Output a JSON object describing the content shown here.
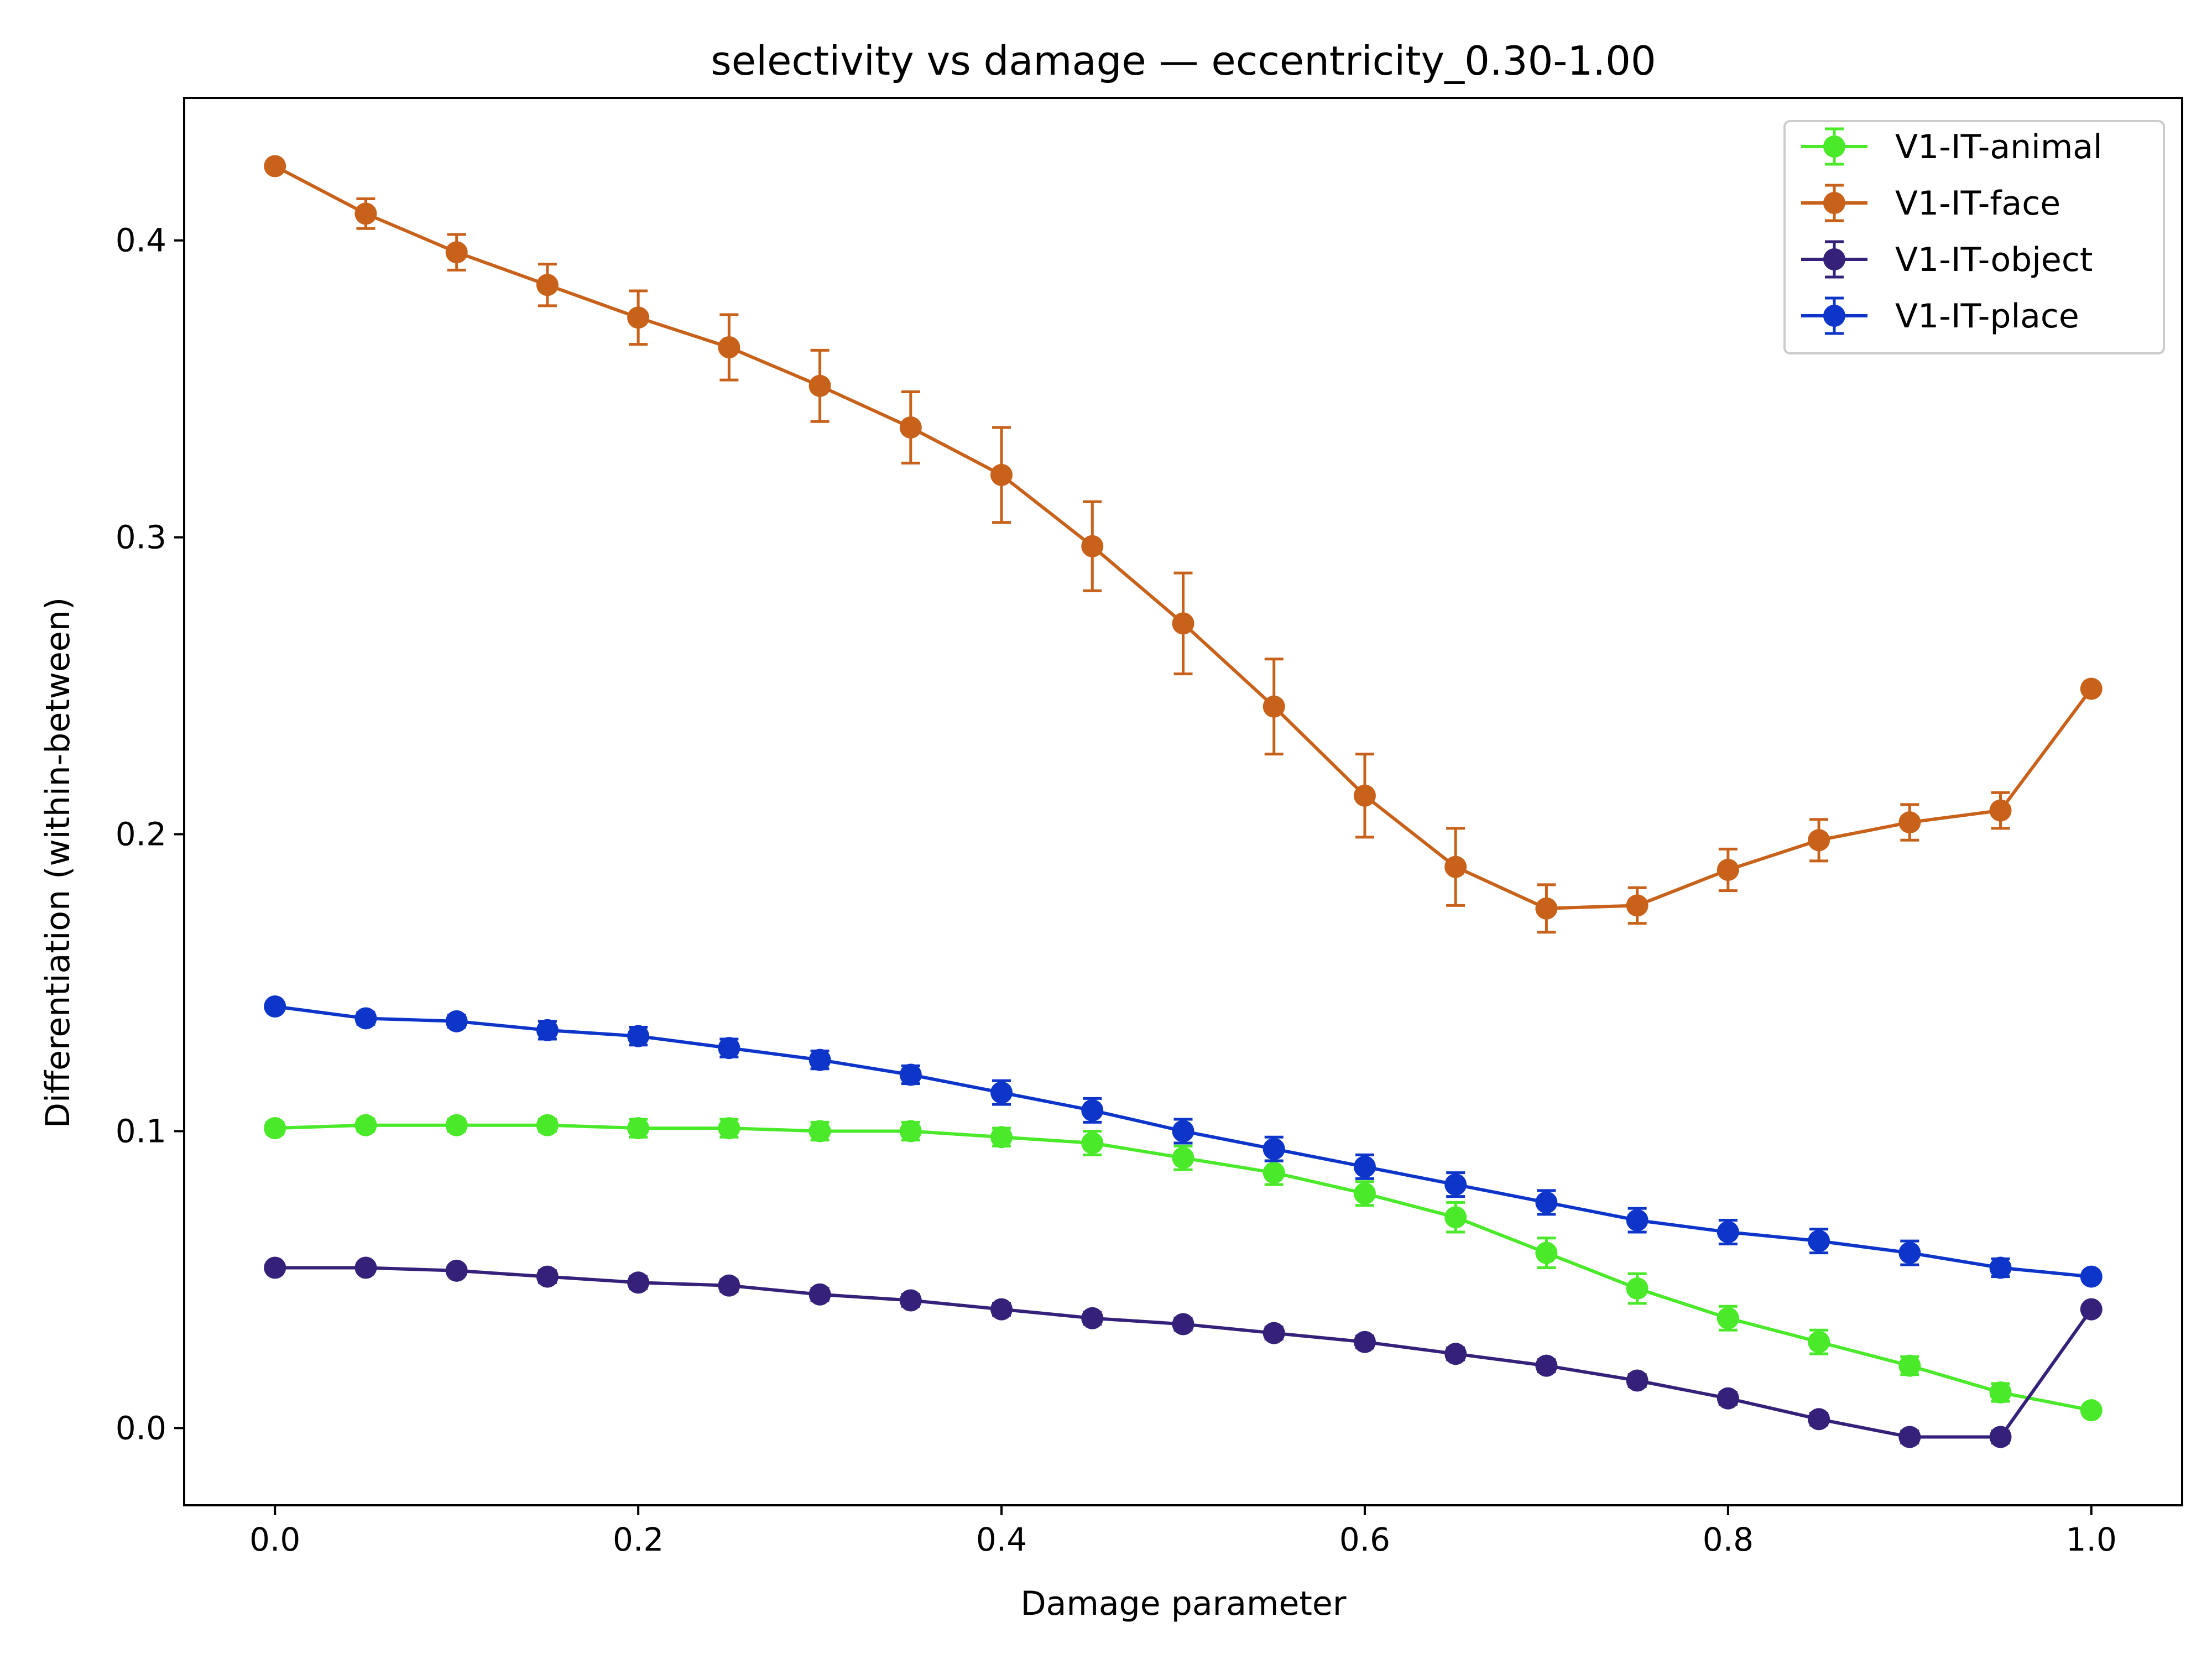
{
  "chart_data": {
    "type": "line",
    "title": "selectivity vs damage — eccentricity_0.30-1.00",
    "xlabel": "Damage parameter",
    "ylabel": "Differentiation (within-between)",
    "xlim": [
      -0.05,
      1.05
    ],
    "ylim": [
      -0.026,
      0.448
    ],
    "xticks": [
      0.0,
      0.2,
      0.4,
      0.6,
      0.8,
      1.0
    ],
    "xtick_labels": [
      "0.0",
      "0.2",
      "0.4",
      "0.6",
      "0.8",
      "1.0"
    ],
    "yticks": [
      0.0,
      0.1,
      0.2,
      0.3,
      0.4
    ],
    "ytick_labels": [
      "0.0",
      "0.1",
      "0.2",
      "0.3",
      "0.4"
    ],
    "grid": false,
    "legend_position": "top-right",
    "x": [
      0.0,
      0.05,
      0.1,
      0.15,
      0.2,
      0.25,
      0.3,
      0.35,
      0.4,
      0.45,
      0.5,
      0.55,
      0.6,
      0.65,
      0.7,
      0.75,
      0.8,
      0.85,
      0.9,
      0.95,
      1.0
    ],
    "series": [
      {
        "name": "V1-IT-animal",
        "color": "#4ae92a",
        "values": [
          0.101,
          0.102,
          0.102,
          0.102,
          0.101,
          0.101,
          0.1,
          0.1,
          0.098,
          0.096,
          0.091,
          0.086,
          0.079,
          0.071,
          0.059,
          0.047,
          0.037,
          0.029,
          0.021,
          0.012,
          0.006
        ],
        "errors": [
          0.002,
          0.002,
          0.002,
          0.002,
          0.003,
          0.003,
          0.003,
          0.003,
          0.003,
          0.004,
          0.004,
          0.004,
          0.004,
          0.005,
          0.005,
          0.005,
          0.004,
          0.004,
          0.003,
          0.003,
          0.001
        ]
      },
      {
        "name": "V1-IT-face",
        "color": "#c8611a",
        "values": [
          0.425,
          0.409,
          0.396,
          0.385,
          0.374,
          0.364,
          0.351,
          0.337,
          0.321,
          0.297,
          0.271,
          0.243,
          0.213,
          0.189,
          0.175,
          0.176,
          0.188,
          0.198,
          0.204,
          0.208,
          0.249
        ],
        "errors": [
          0.001,
          0.005,
          0.006,
          0.007,
          0.009,
          0.011,
          0.012,
          0.012,
          0.016,
          0.015,
          0.017,
          0.016,
          0.014,
          0.013,
          0.008,
          0.006,
          0.007,
          0.007,
          0.006,
          0.006,
          0.001
        ]
      },
      {
        "name": "V1-IT-object",
        "color": "#35217a",
        "values": [
          0.054,
          0.054,
          0.053,
          0.051,
          0.049,
          0.048,
          0.045,
          0.043,
          0.04,
          0.037,
          0.035,
          0.032,
          0.029,
          0.025,
          0.021,
          0.016,
          0.01,
          0.003,
          -0.003,
          -0.003,
          0.04
        ],
        "errors": [
          0.001,
          0.001,
          0.001,
          0.002,
          0.002,
          0.002,
          0.002,
          0.002,
          0.002,
          0.002,
          0.002,
          0.002,
          0.002,
          0.002,
          0.002,
          0.002,
          0.002,
          0.002,
          0.002,
          0.002,
          0.001
        ]
      },
      {
        "name": "V1-IT-place",
        "color": "#0d35c9",
        "values": [
          0.142,
          0.138,
          0.137,
          0.134,
          0.132,
          0.128,
          0.124,
          0.119,
          0.113,
          0.107,
          0.1,
          0.094,
          0.088,
          0.082,
          0.076,
          0.07,
          0.066,
          0.063,
          0.059,
          0.054,
          0.051
        ],
        "errors": [
          0.001,
          0.002,
          0.002,
          0.003,
          0.003,
          0.003,
          0.003,
          0.003,
          0.004,
          0.004,
          0.004,
          0.004,
          0.004,
          0.004,
          0.004,
          0.004,
          0.004,
          0.004,
          0.004,
          0.003,
          0.001
        ]
      }
    ]
  }
}
